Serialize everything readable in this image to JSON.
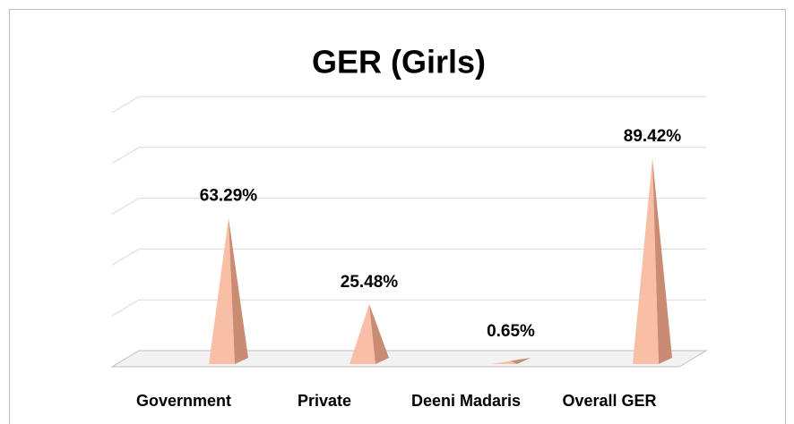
{
  "chart_data": {
    "type": "bar",
    "title": "GER (Girls)",
    "categories": [
      "Government",
      "Private",
      "Deeni Madaris",
      "Overall GER"
    ],
    "values": [
      63.29,
      25.48,
      0.65,
      89.42
    ],
    "value_labels": [
      "63.29%",
      "25.48%",
      "0.65%",
      "89.42%"
    ],
    "color": "#f9bfa6",
    "ylim": [
      0,
      100
    ],
    "yticks": [
      0,
      20,
      40,
      60,
      80,
      100
    ],
    "grid": true
  }
}
